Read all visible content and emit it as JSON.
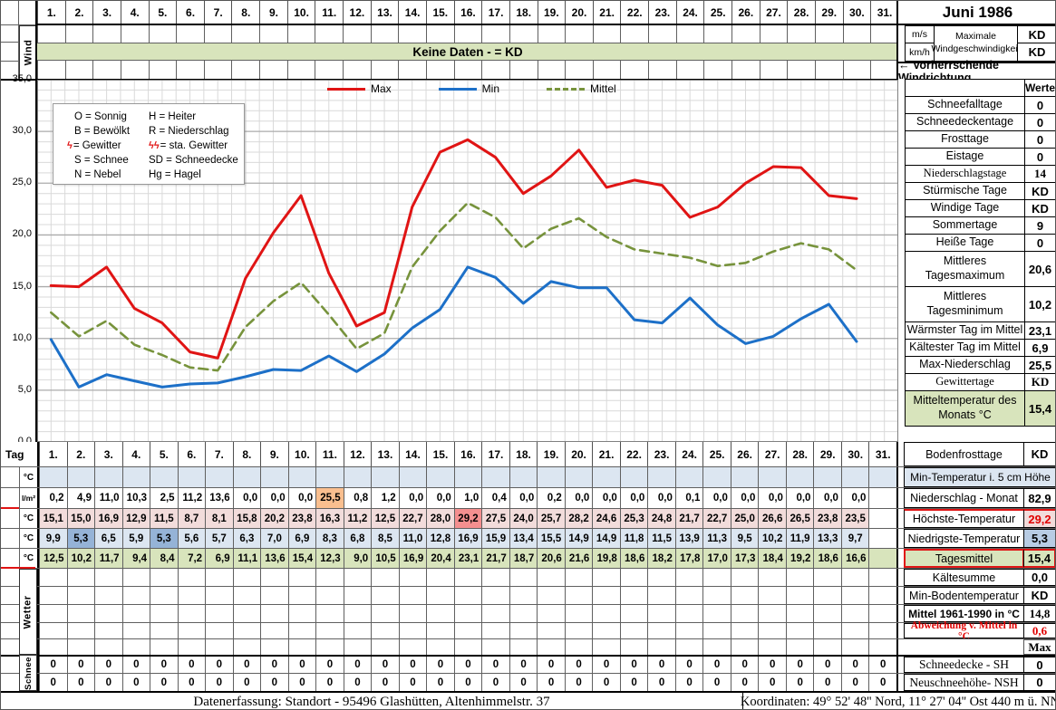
{
  "title": "Juni 1986",
  "days": [
    "1.",
    "2.",
    "3.",
    "4.",
    "5.",
    "6.",
    "7.",
    "8.",
    "9.",
    "10.",
    "11.",
    "12.",
    "13.",
    "14.",
    "15.",
    "16.",
    "17.",
    "18.",
    "19.",
    "20.",
    "21.",
    "22.",
    "23.",
    "24.",
    "25.",
    "26.",
    "27.",
    "28.",
    "29.",
    "30.",
    "31."
  ],
  "wind": {
    "side_label": "Wind",
    "banner": "Keine Daten -  = KD",
    "unit_ms": "m/s",
    "unit_kmh": "km/h",
    "max_label": "Maximale Windgeschwindigkeit",
    "max_ms_value": "KD",
    "max_kmh_value": "KD",
    "direction_label": "←  Vorherrschende Windrichtung"
  },
  "code_legend": [
    {
      "left": "O = Sonnig",
      "right": "H = Heiter"
    },
    {
      "left": "B = Bewölkt",
      "right": "R = Niederschlag"
    },
    {
      "left": "= Gewitter",
      "left_icon": "lightning",
      "right": "= sta. Gewitter",
      "right_icon": "lightning-double"
    },
    {
      "left": "S = Schnee",
      "right": "SD = Schneedecke"
    },
    {
      "left": "N = Nebel",
      "right": "Hg = Hagel"
    }
  ],
  "chart_data": {
    "type": "line",
    "x_days": [
      1,
      2,
      3,
      4,
      5,
      6,
      7,
      8,
      9,
      10,
      11,
      12,
      13,
      14,
      15,
      16,
      17,
      18,
      19,
      20,
      21,
      22,
      23,
      24,
      25,
      26,
      27,
      28,
      29,
      30
    ],
    "ylim": [
      0,
      35
    ],
    "y_ticks": [
      "0,0",
      "5,0",
      "10,0",
      "15,0",
      "20,0",
      "25,0",
      "30,0",
      "35,0"
    ],
    "grid": "minor 1°C horizontal, half-day vertical",
    "legend_position": "top-center-inside",
    "series": [
      {
        "name": "Max",
        "color": "#e01414",
        "style": "solid",
        "values": [
          15.1,
          15.0,
          16.9,
          12.9,
          11.5,
          8.7,
          8.1,
          15.8,
          20.2,
          23.8,
          16.3,
          11.2,
          12.5,
          22.7,
          28.0,
          29.2,
          27.5,
          24.0,
          25.7,
          28.2,
          24.6,
          25.3,
          24.8,
          21.7,
          22.7,
          25.0,
          26.6,
          26.5,
          23.8,
          23.5
        ]
      },
      {
        "name": "Min",
        "color": "#1d70c8",
        "style": "solid",
        "values": [
          9.9,
          5.3,
          6.5,
          5.9,
          5.3,
          5.6,
          5.7,
          6.3,
          7.0,
          6.9,
          8.3,
          6.8,
          8.5,
          11.0,
          12.8,
          16.9,
          15.9,
          13.4,
          15.5,
          14.9,
          14.9,
          11.8,
          11.5,
          13.9,
          11.3,
          9.5,
          10.2,
          11.9,
          13.3,
          9.7
        ]
      },
      {
        "name": "Mittel",
        "color": "#77933c",
        "style": "dashed",
        "values": [
          12.5,
          10.2,
          11.7,
          9.4,
          8.4,
          7.2,
          6.9,
          11.1,
          13.6,
          15.4,
          12.3,
          9.0,
          10.5,
          16.9,
          20.4,
          23.1,
          21.7,
          18.7,
          20.6,
          21.6,
          19.8,
          18.6,
          18.2,
          17.8,
          17.0,
          17.3,
          18.4,
          19.2,
          18.6,
          16.6
        ]
      }
    ]
  },
  "stats": {
    "header": "Werte",
    "rows": [
      {
        "label": "Schneefalltage",
        "value": "0"
      },
      {
        "label": "Schneedeckentage",
        "value": "0"
      },
      {
        "label": "Frosttage",
        "value": "0"
      },
      {
        "label": "Eistage",
        "value": "0"
      },
      {
        "label": "Niederschlagstage",
        "value": "14",
        "serif": true
      },
      {
        "label": "Stürmische Tage",
        "value": "KD"
      },
      {
        "label": "Windige Tage",
        "value": "KD"
      },
      {
        "label": "Sommertage",
        "value": "9"
      },
      {
        "label": "Heiße Tage",
        "value": "0"
      },
      {
        "label": "Mittleres Tagesmaximum",
        "value": "20,6",
        "tall": true
      },
      {
        "label": "Mittleres Tagesminimum",
        "value": "10,2",
        "tall": true
      },
      {
        "label": "Wärmster Tag im Mittel",
        "value": "23,1"
      },
      {
        "label": "Kältester Tag im Mittel",
        "value": "6,9"
      },
      {
        "label": "Max-Niederschlag",
        "value": "25,5"
      },
      {
        "label": "Gewittertage",
        "value": "KD",
        "serif": true
      },
      {
        "label": "Mitteltemperatur des Monats °C",
        "value": "15,4",
        "tall": true,
        "green": true
      }
    ]
  },
  "table": {
    "tag_label": "Tag",
    "unit_c": "°C",
    "unit_lm2": "l/m²",
    "wetter_label": "Wetter",
    "schnee_label": "Schnee",
    "precip": [
      "0,2",
      "4,9",
      "11,0",
      "10,3",
      "2,5",
      "11,2",
      "13,6",
      "0,0",
      "0,0",
      "0,0",
      "25,5",
      "0,8",
      "1,2",
      "0,0",
      "0,0",
      "1,0",
      "0,4",
      "0,0",
      "0,2",
      "0,0",
      "0,0",
      "0,0",
      "0,0",
      "0,1",
      "0,0",
      "0,0",
      "0,0",
      "0,0",
      "0,0",
      "0,0",
      ""
    ],
    "tmax": [
      "15,1",
      "15,0",
      "16,9",
      "12,9",
      "11,5",
      "8,7",
      "8,1",
      "15,8",
      "20,2",
      "23,8",
      "16,3",
      "11,2",
      "12,5",
      "22,7",
      "28,0",
      "29,2",
      "27,5",
      "24,0",
      "25,7",
      "28,2",
      "24,6",
      "25,3",
      "24,8",
      "21,7",
      "22,7",
      "25,0",
      "26,6",
      "26,5",
      "23,8",
      "23,5",
      ""
    ],
    "tmin": [
      "9,9",
      "5,3",
      "6,5",
      "5,9",
      "5,3",
      "5,6",
      "5,7",
      "6,3",
      "7,0",
      "6,9",
      "8,3",
      "6,8",
      "8,5",
      "11,0",
      "12,8",
      "16,9",
      "15,9",
      "13,4",
      "15,5",
      "14,9",
      "14,9",
      "11,8",
      "11,5",
      "13,9",
      "11,3",
      "9,5",
      "10,2",
      "11,9",
      "13,3",
      "9,7",
      ""
    ],
    "tmittel": [
      "12,5",
      "10,2",
      "11,7",
      "9,4",
      "8,4",
      "7,2",
      "6,9",
      "11,1",
      "13,6",
      "15,4",
      "12,3",
      "9,0",
      "10,5",
      "16,9",
      "20,4",
      "23,1",
      "21,7",
      "18,7",
      "20,6",
      "21,6",
      "19,8",
      "18,6",
      "18,2",
      "17,8",
      "17,0",
      "17,3",
      "18,4",
      "19,2",
      "18,6",
      "16,6",
      ""
    ],
    "snow1": [
      "0",
      "0",
      "0",
      "0",
      "0",
      "0",
      "0",
      "0",
      "0",
      "0",
      "0",
      "0",
      "0",
      "0",
      "0",
      "0",
      "0",
      "0",
      "0",
      "0",
      "0",
      "0",
      "0",
      "0",
      "0",
      "0",
      "0",
      "0",
      "0",
      "0",
      "0"
    ],
    "snow2": [
      "0",
      "0",
      "0",
      "0",
      "0",
      "0",
      "0",
      "0",
      "0",
      "0",
      "0",
      "0",
      "0",
      "0",
      "0",
      "0",
      "0",
      "0",
      "0",
      "0",
      "0",
      "0",
      "0",
      "0",
      "0",
      "0",
      "0",
      "0",
      "0",
      "0",
      "0"
    ],
    "highlights": {
      "precip": {
        "10": "orange"
      },
      "tmax": {
        "15": "red"
      },
      "tmin": {
        "1": "blue",
        "4": "blue"
      }
    }
  },
  "side_rows": {
    "bodenfrost": {
      "label": "Bodenfrosttage",
      "value": "KD"
    },
    "min5cm": {
      "label": "Min-Temperatur i. 5 cm Höhe"
    },
    "niederschlag_monat": {
      "label": "Niederschlag - Monat",
      "value": "82,9"
    },
    "hoechste": {
      "label": "Höchste-Temperatur",
      "value": "29,2"
    },
    "niedrigste": {
      "label": "Niedrigste-Temperatur",
      "value": "5,3"
    },
    "tagesmittel": {
      "label": "Tagesmittel",
      "value": "15,4"
    },
    "kaeltesumme": {
      "label": "Kältesumme",
      "value": "0,0"
    },
    "minboden": {
      "label": "Min-Bodentemperatur",
      "value": "KD"
    },
    "mittel6190": {
      "label": "Mittel 1961-1990 in °C",
      "value": "14,8"
    },
    "abweichung": {
      "label": "Abweichung v. Mittel in °C",
      "value": "0,6"
    },
    "max_header": "Max",
    "schneedecke": {
      "label": "Schneedecke -   SH",
      "value": "0"
    },
    "neuschnee": {
      "label": "Neuschneehöhe- NSH",
      "value": "0"
    }
  },
  "footer": {
    "left": "Datenerfassung:  Standort -  95496  Glashütten, Altenhimmelstr. 37",
    "right": "Koordinaten:  49° 52' 48'' Nord,   11° 27' 04'' Ost   440 m ü. NN"
  },
  "colors": {
    "banner_green": "#d8e4bc",
    "row_blue": "#dce6f1",
    "row_pink": "#f2dcdb",
    "row_green": "#d8e4bc",
    "hl_orange": "#fabf8f",
    "hl_red": "#f58f8f",
    "hl_blue": "#95b3d7",
    "series_max": "#e01414",
    "series_min": "#1d70c8",
    "series_mittel": "#77933c",
    "accent_red": "#e00000"
  }
}
